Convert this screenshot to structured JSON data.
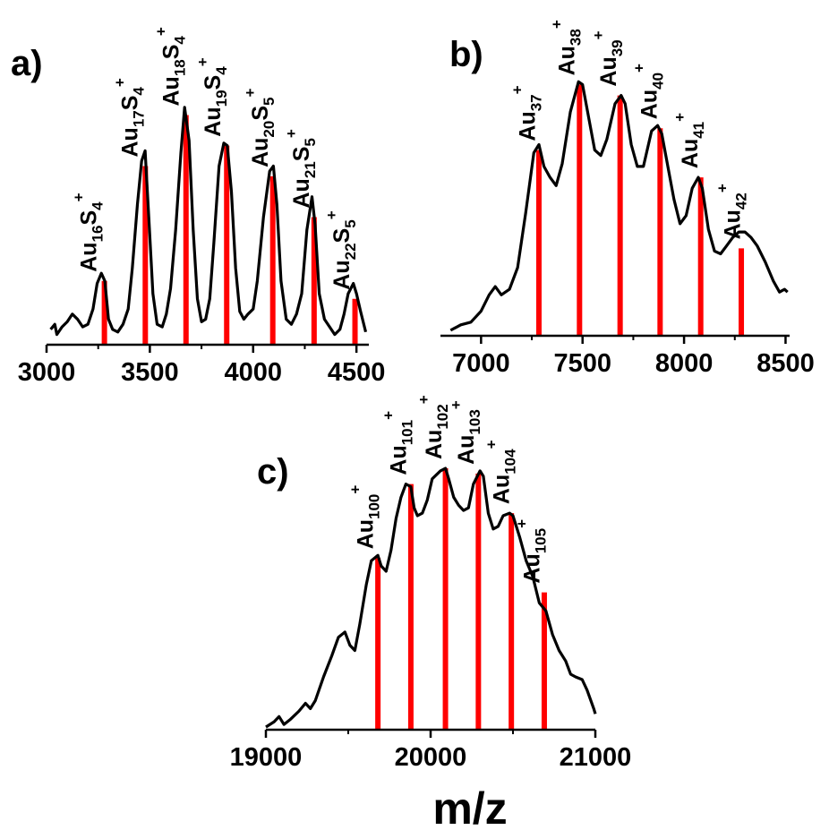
{
  "colors": {
    "spectrum": "#000000",
    "stick": "#ff0000",
    "axis": "#000000"
  },
  "chart_data": [
    {
      "id": "a",
      "type": "line",
      "panel_label": "a)",
      "xlim": [
        3000,
        4560
      ],
      "ylim": [
        0,
        100
      ],
      "xticks": [
        3000,
        3500,
        4000,
        4500
      ],
      "xtick_labels": [
        "3000",
        "3500",
        "4000",
        "4500"
      ],
      "spectrum": [
        [
          3020,
          6
        ],
        [
          3040,
          8
        ],
        [
          3050,
          4
        ],
        [
          3075,
          7
        ],
        [
          3100,
          9
        ],
        [
          3125,
          12
        ],
        [
          3150,
          10
        ],
        [
          3175,
          7
        ],
        [
          3200,
          8
        ],
        [
          3225,
          14
        ],
        [
          3245,
          24
        ],
        [
          3265,
          28
        ],
        [
          3282,
          25
        ],
        [
          3300,
          10
        ],
        [
          3320,
          6
        ],
        [
          3345,
          5
        ],
        [
          3370,
          8
        ],
        [
          3395,
          14
        ],
        [
          3415,
          30
        ],
        [
          3440,
          55
        ],
        [
          3460,
          72
        ],
        [
          3477,
          76
        ],
        [
          3495,
          50
        ],
        [
          3515,
          20
        ],
        [
          3535,
          8
        ],
        [
          3560,
          7
        ],
        [
          3580,
          12
        ],
        [
          3600,
          22
        ],
        [
          3625,
          45
        ],
        [
          3650,
          75
        ],
        [
          3668,
          93
        ],
        [
          3690,
          80
        ],
        [
          3710,
          45
        ],
        [
          3730,
          18
        ],
        [
          3750,
          9
        ],
        [
          3770,
          10
        ],
        [
          3790,
          18
        ],
        [
          3810,
          40
        ],
        [
          3835,
          70
        ],
        [
          3858,
          79
        ],
        [
          3875,
          78
        ],
        [
          3895,
          60
        ],
        [
          3915,
          30
        ],
        [
          3935,
          13
        ],
        [
          3955,
          10
        ],
        [
          3975,
          12
        ],
        [
          4000,
          14
        ],
        [
          4020,
          25
        ],
        [
          4050,
          50
        ],
        [
          4080,
          68
        ],
        [
          4098,
          70
        ],
        [
          4115,
          55
        ],
        [
          4135,
          25
        ],
        [
          4160,
          10
        ],
        [
          4185,
          8
        ],
        [
          4210,
          12
        ],
        [
          4235,
          20
        ],
        [
          4260,
          45
        ],
        [
          4285,
          58
        ],
        [
          4300,
          47
        ],
        [
          4320,
          20
        ],
        [
          4345,
          10
        ],
        [
          4370,
          7
        ],
        [
          4395,
          4
        ],
        [
          4420,
          6
        ],
        [
          4440,
          12
        ],
        [
          4460,
          20
        ],
        [
          4485,
          24
        ],
        [
          4500,
          20
        ],
        [
          4520,
          13
        ],
        [
          4545,
          5
        ]
      ],
      "sticks": [
        [
          3280,
          25
        ],
        [
          3478,
          70
        ],
        [
          3675,
          90
        ],
        [
          3872,
          78
        ],
        [
          4095,
          66
        ],
        [
          4295,
          50
        ],
        [
          4493,
          18
        ]
      ],
      "ions": [
        {
          "x": 3240,
          "base": "Au",
          "parts": [
            {
              "sub": "16"
            },
            {
              "text": "S"
            },
            {
              "sub": "4"
            }
          ],
          "sup": "+"
        },
        {
          "x": 3440,
          "base": "Au",
          "parts": [
            {
              "sub": "17"
            },
            {
              "text": "S"
            },
            {
              "sub": "4"
            }
          ],
          "sup": "+"
        },
        {
          "x": 3640,
          "base": "Au",
          "parts": [
            {
              "sub": "18"
            },
            {
              "text": "S"
            },
            {
              "sub": "4"
            }
          ],
          "sup": "+"
        },
        {
          "x": 3840,
          "base": "Au",
          "parts": [
            {
              "sub": "19"
            },
            {
              "text": "S"
            },
            {
              "sub": "4"
            }
          ],
          "sup": "+"
        },
        {
          "x": 4070,
          "base": "Au",
          "parts": [
            {
              "sub": "20"
            },
            {
              "text": "S"
            },
            {
              "sub": "5"
            }
          ],
          "sup": "+"
        },
        {
          "x": 4270,
          "base": "Au",
          "parts": [
            {
              "sub": "21"
            },
            {
              "text": "S"
            },
            {
              "sub": "5"
            }
          ],
          "sup": "+"
        },
        {
          "x": 4465,
          "base": "Au",
          "parts": [
            {
              "sub": "22"
            },
            {
              "text": "S"
            },
            {
              "sub": "5"
            }
          ],
          "sup": "+"
        }
      ]
    },
    {
      "id": "b",
      "type": "line",
      "panel_label": "b)",
      "xlim": [
        6800,
        8520
      ],
      "ylim": [
        0,
        100
      ],
      "xticks": [
        7000,
        7500,
        8000,
        8500
      ],
      "xtick_labels": [
        "7000",
        "7500",
        "8000",
        "8500"
      ],
      "spectrum": [
        [
          6850,
          2
        ],
        [
          6900,
          4
        ],
        [
          6950,
          5
        ],
        [
          7000,
          9
        ],
        [
          7040,
          15
        ],
        [
          7070,
          18
        ],
        [
          7100,
          15
        ],
        [
          7140,
          17
        ],
        [
          7180,
          25
        ],
        [
          7220,
          45
        ],
        [
          7260,
          67
        ],
        [
          7285,
          70
        ],
        [
          7310,
          62
        ],
        [
          7340,
          58
        ],
        [
          7370,
          55
        ],
        [
          7400,
          63
        ],
        [
          7440,
          82
        ],
        [
          7480,
          93
        ],
        [
          7500,
          92
        ],
        [
          7530,
          80
        ],
        [
          7560,
          68
        ],
        [
          7590,
          66
        ],
        [
          7620,
          72
        ],
        [
          7660,
          85
        ],
        [
          7690,
          88
        ],
        [
          7710,
          85
        ],
        [
          7740,
          70
        ],
        [
          7770,
          62
        ],
        [
          7800,
          62
        ],
        [
          7840,
          75
        ],
        [
          7870,
          77
        ],
        [
          7890,
          74
        ],
        [
          7920,
          62
        ],
        [
          7950,
          50
        ],
        [
          7980,
          41
        ],
        [
          8010,
          44
        ],
        [
          8040,
          54
        ],
        [
          8070,
          58
        ],
        [
          8090,
          54
        ],
        [
          8120,
          39
        ],
        [
          8150,
          31
        ],
        [
          8180,
          30
        ],
        [
          8210,
          33
        ],
        [
          8240,
          36
        ],
        [
          8270,
          38
        ],
        [
          8300,
          38
        ],
        [
          8330,
          36
        ],
        [
          8360,
          33
        ],
        [
          8400,
          27
        ],
        [
          8440,
          20
        ],
        [
          8470,
          16
        ],
        [
          8495,
          17
        ],
        [
          8510,
          16
        ]
      ],
      "sticks": [
        [
          7285,
          68
        ],
        [
          7485,
          92
        ],
        [
          7685,
          88
        ],
        [
          7882,
          76
        ],
        [
          8082,
          58
        ],
        [
          8282,
          32
        ]
      ],
      "ions": [
        {
          "x": 7265,
          "base": "Au",
          "parts": [
            {
              "sub": "37"
            }
          ],
          "sup": "+"
        },
        {
          "x": 7460,
          "base": "Au",
          "parts": [
            {
              "sub": "38"
            }
          ],
          "sup": "+"
        },
        {
          "x": 7665,
          "base": "Au",
          "parts": [
            {
              "sub": "39"
            }
          ],
          "sup": "+"
        },
        {
          "x": 7865,
          "base": "Au",
          "parts": [
            {
              "sub": "40"
            }
          ],
          "sup": "+"
        },
        {
          "x": 8065,
          "base": "Au",
          "parts": [
            {
              "sub": "41"
            }
          ],
          "sup": "+"
        },
        {
          "x": 8275,
          "base": "Au",
          "parts": [
            {
              "sub": "42"
            }
          ],
          "sup": "+"
        }
      ]
    },
    {
      "id": "c",
      "type": "line",
      "panel_label": "c)",
      "xlabel": "m/z",
      "xlim": [
        19000,
        21000
      ],
      "ylim": [
        0,
        100
      ],
      "xticks": [
        19000,
        20000,
        21000
      ],
      "xtick_labels": [
        "19000",
        "20000",
        "21000"
      ],
      "spectrum": [
        [
          19000,
          1
        ],
        [
          19050,
          3
        ],
        [
          19080,
          5
        ],
        [
          19110,
          2
        ],
        [
          19150,
          4
        ],
        [
          19200,
          7
        ],
        [
          19240,
          10
        ],
        [
          19270,
          8
        ],
        [
          19300,
          11
        ],
        [
          19350,
          20
        ],
        [
          19400,
          28
        ],
        [
          19440,
          35
        ],
        [
          19480,
          37
        ],
        [
          19510,
          32
        ],
        [
          19540,
          30
        ],
        [
          19570,
          40
        ],
        [
          19610,
          55
        ],
        [
          19640,
          64
        ],
        [
          19680,
          66
        ],
        [
          19700,
          62
        ],
        [
          19730,
          60
        ],
        [
          19760,
          68
        ],
        [
          19790,
          80
        ],
        [
          19820,
          88
        ],
        [
          19850,
          93
        ],
        [
          19880,
          92
        ],
        [
          19900,
          84
        ],
        [
          19920,
          81
        ],
        [
          19950,
          82
        ],
        [
          19980,
          87
        ],
        [
          20010,
          95
        ],
        [
          20060,
          98
        ],
        [
          20090,
          99
        ],
        [
          20110,
          95
        ],
        [
          20140,
          88
        ],
        [
          20170,
          85
        ],
        [
          20200,
          83
        ],
        [
          20230,
          84
        ],
        [
          20260,
          93
        ],
        [
          20300,
          98
        ],
        [
          20320,
          96
        ],
        [
          20350,
          82
        ],
        [
          20380,
          76
        ],
        [
          20410,
          77
        ],
        [
          20440,
          81
        ],
        [
          20480,
          82
        ],
        [
          20500,
          81
        ],
        [
          20540,
          73
        ],
        [
          20580,
          64
        ],
        [
          20620,
          58
        ],
        [
          20660,
          48
        ],
        [
          20700,
          45
        ],
        [
          20740,
          36
        ],
        [
          20780,
          30
        ],
        [
          20820,
          26
        ],
        [
          20850,
          21
        ],
        [
          20880,
          20
        ],
        [
          20920,
          19
        ],
        [
          20950,
          15
        ],
        [
          20990,
          8
        ],
        [
          21000,
          6
        ]
      ],
      "sticks": [
        [
          19680,
          65
        ],
        [
          19880,
          93
        ],
        [
          20090,
          99
        ],
        [
          20290,
          97
        ],
        [
          20490,
          82
        ],
        [
          20690,
          52
        ]
      ],
      "ions": [
        {
          "x": 19650,
          "base": "Au",
          "parts": [
            {
              "sub": "100"
            }
          ],
          "sup": "+"
        },
        {
          "x": 19850,
          "base": "Au",
          "parts": [
            {
              "sub": "101"
            }
          ],
          "sup": "+"
        },
        {
          "x": 20065,
          "base": "Au",
          "parts": [
            {
              "sub": "102"
            }
          ],
          "sup": "+"
        },
        {
          "x": 20260,
          "base": "Au",
          "parts": [
            {
              "sub": "103"
            }
          ],
          "sup": "+"
        },
        {
          "x": 20475,
          "base": "Au",
          "parts": [
            {
              "sub": "104"
            }
          ],
          "sup": "+"
        },
        {
          "x": 20660,
          "base": "Au",
          "parts": [
            {
              "sub": "105"
            }
          ],
          "sup": "+"
        }
      ]
    }
  ]
}
